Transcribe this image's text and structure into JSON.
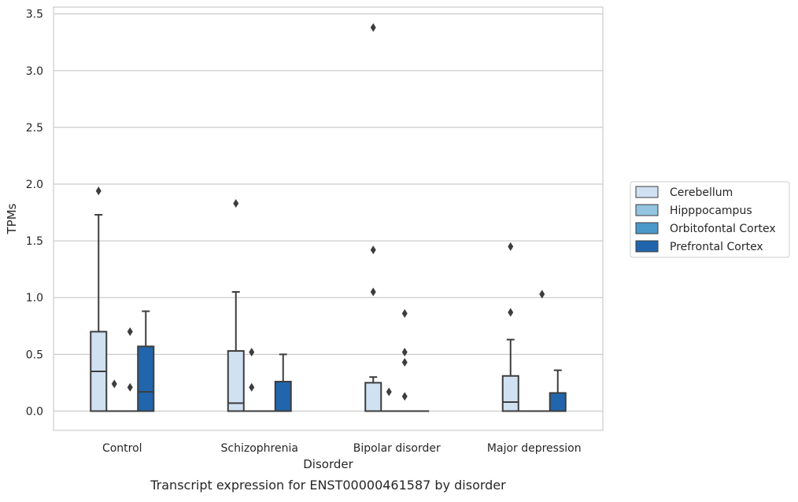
{
  "chart_data": {
    "type": "box",
    "caption": "Transcript expression for ENST00000461587 by disorder",
    "xlabel": "Disorder",
    "ylabel": "TPMs",
    "ylim": [
      -0.17,
      3.56
    ],
    "yticks": [
      0.0,
      0.5,
      1.0,
      1.5,
      2.0,
      2.5,
      3.0,
      3.5
    ],
    "ytick_labels": [
      "0.0",
      "0.5",
      "1.0",
      "1.5",
      "2.0",
      "2.5",
      "3.0",
      "3.5"
    ],
    "grid": "horizontal",
    "legend_position": "right",
    "categories": [
      "Control",
      "Schizophrenia",
      "Bipolar disorder",
      "Major depression"
    ],
    "series": [
      {
        "name": "Cerebellum",
        "color": "#d0e1f2",
        "boxes": [
          {
            "whislo": 0.0,
            "q1": 0.0,
            "med": 0.35,
            "q3": 0.7,
            "whishi": 1.73,
            "fliers": [
              1.94
            ]
          },
          {
            "whislo": 0.0,
            "q1": 0.0,
            "med": 0.07,
            "q3": 0.53,
            "whishi": 1.05,
            "fliers": [
              1.83
            ]
          },
          {
            "whislo": 0.0,
            "q1": 0.0,
            "med": 0.0,
            "q3": 0.25,
            "whishi": 0.3,
            "fliers": [
              1.05,
              1.42,
              3.38
            ]
          },
          {
            "whislo": 0.0,
            "q1": 0.0,
            "med": 0.08,
            "q3": 0.31,
            "whishi": 0.63,
            "fliers": [
              0.87,
              1.45
            ]
          }
        ]
      },
      {
        "name": "Hipppocampus",
        "color": "#94c4df",
        "boxes": [
          {
            "whislo": 0.0,
            "q1": 0.0,
            "med": 0.0,
            "q3": 0.0,
            "whishi": 0.0,
            "fliers": [
              0.24
            ]
          },
          {
            "whislo": 0.0,
            "q1": 0.0,
            "med": 0.0,
            "q3": 0.0,
            "whishi": 0.0,
            "fliers": [
              0.21,
              0.52
            ]
          },
          {
            "whislo": 0.0,
            "q1": 0.0,
            "med": 0.0,
            "q3": 0.0,
            "whishi": 0.0,
            "fliers": [
              0.17
            ]
          },
          {
            "whislo": 0.0,
            "q1": 0.0,
            "med": 0.0,
            "q3": 0.0,
            "whishi": 0.0,
            "fliers": []
          }
        ]
      },
      {
        "name": "Orbitofontal Cortex",
        "color": "#4a98c9",
        "boxes": [
          {
            "whislo": 0.0,
            "q1": 0.0,
            "med": 0.0,
            "q3": 0.0,
            "whishi": 0.0,
            "fliers": [
              0.21,
              0.7
            ]
          },
          {
            "whislo": 0.0,
            "q1": 0.0,
            "med": 0.0,
            "q3": 0.0,
            "whishi": 0.0,
            "fliers": []
          },
          {
            "whislo": 0.0,
            "q1": 0.0,
            "med": 0.0,
            "q3": 0.0,
            "whishi": 0.0,
            "fliers": [
              0.13,
              0.43,
              0.52,
              0.86
            ]
          },
          {
            "whislo": 0.0,
            "q1": 0.0,
            "med": 0.0,
            "q3": 0.0,
            "whishi": 0.0,
            "fliers": [
              1.03
            ]
          }
        ]
      },
      {
        "name": "Prefrontal Cortex",
        "color": "#2166ac",
        "boxes": [
          {
            "whislo": 0.0,
            "q1": 0.0,
            "med": 0.17,
            "q3": 0.57,
            "whishi": 0.88,
            "fliers": []
          },
          {
            "whislo": 0.0,
            "q1": 0.0,
            "med": 0.0,
            "q3": 0.26,
            "whishi": 0.5,
            "fliers": []
          },
          {
            "whislo": 0.0,
            "q1": 0.0,
            "med": 0.0,
            "q3": 0.0,
            "whishi": 0.0,
            "fliers": []
          },
          {
            "whislo": 0.0,
            "q1": 0.0,
            "med": 0.0,
            "q3": 0.16,
            "whishi": 0.36,
            "fliers": []
          }
        ]
      }
    ]
  }
}
